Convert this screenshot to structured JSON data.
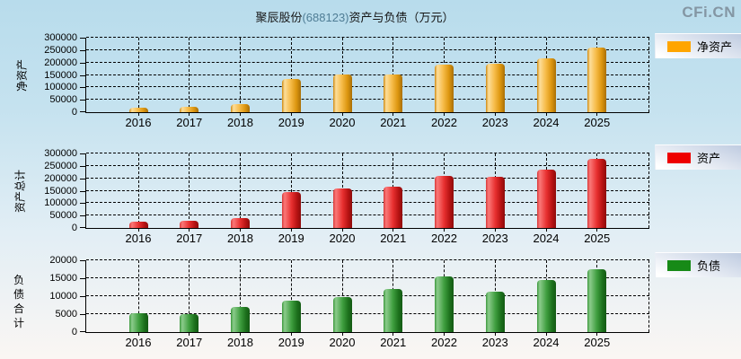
{
  "header": {
    "title": {
      "prefix": "聚辰股份",
      "code": "(688123)",
      "suffix": "资产与负债（万元）"
    },
    "logo": "CFi.CN"
  },
  "chart_data": [
    {
      "type": "bar",
      "name": "net-assets",
      "y_axis_title": "净资产",
      "legend": "净资产",
      "color": "#FFA500",
      "ylim": [
        0,
        300000
      ],
      "ytick_step": 50000,
      "grid": true,
      "legend_position": "right",
      "categories": [
        "2016",
        "2017",
        "2018",
        "2019",
        "2020",
        "2021",
        "2022",
        "2023",
        "2024",
        "2025"
      ],
      "values": [
        18000,
        23000,
        33000,
        135000,
        150000,
        152000,
        190000,
        196000,
        217000,
        262000
      ]
    },
    {
      "type": "bar",
      "name": "total-assets",
      "y_axis_title": "资产总计",
      "legend": "资产",
      "color": "#EE0000",
      "ylim": [
        0,
        300000
      ],
      "ytick_step": 50000,
      "grid": true,
      "legend_position": "right",
      "categories": [
        "2016",
        "2017",
        "2018",
        "2019",
        "2020",
        "2021",
        "2022",
        "2023",
        "2024",
        "2025"
      ],
      "values": [
        24000,
        30000,
        40000,
        146000,
        158000,
        167000,
        209000,
        205000,
        234000,
        278000
      ]
    },
    {
      "type": "bar",
      "name": "total-liabilities",
      "y_axis_title": "负债合计",
      "legend": "负债",
      "color": "#178A17",
      "ylim": [
        0,
        20000
      ],
      "ytick_step": 5000,
      "grid": true,
      "legend_position": "right",
      "categories": [
        "2016",
        "2017",
        "2018",
        "2019",
        "2020",
        "2021",
        "2022",
        "2023",
        "2024",
        "2025"
      ],
      "values": [
        5300,
        5000,
        7000,
        8700,
        9800,
        12100,
        15600,
        11200,
        14500,
        17600
      ]
    }
  ]
}
